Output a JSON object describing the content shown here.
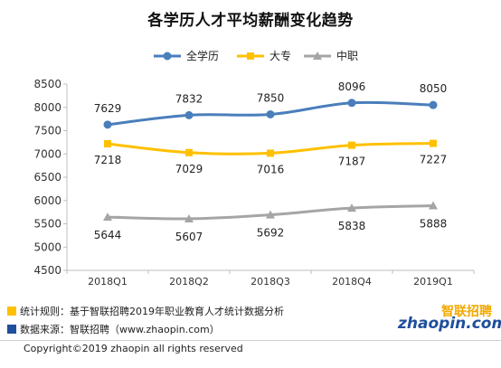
{
  "title": "各学历人才平均薪酬变化趋势",
  "chart_data": {
    "type": "line",
    "categories": [
      "2018Q1",
      "2018Q2",
      "2018Q3",
      "2018Q4",
      "2019Q1"
    ],
    "series": [
      {
        "name": "全学历",
        "values": [
          7629,
          7832,
          7850,
          8096,
          8050
        ],
        "color": "#4a7ebb",
        "marker": "circle"
      },
      {
        "name": "大专",
        "values": [
          7218,
          7029,
          7016,
          7187,
          7227
        ],
        "color": "#ffc000",
        "marker": "square"
      },
      {
        "name": "中职",
        "values": [
          5644,
          5607,
          5692,
          5838,
          5888
        ],
        "color": "#a5a5a5",
        "marker": "triangle"
      }
    ],
    "yticks": [
      "4500",
      "5000",
      "5500",
      "6000",
      "6500",
      "7000",
      "7500",
      "8000",
      "8500"
    ],
    "ylim": [
      4500,
      8500
    ],
    "legend_position": "top",
    "grid": false
  },
  "footer": {
    "rule_text": "统计规则：基于智联招聘2019年职业教育人才统计数据分析",
    "rule_color": "#ffc000",
    "source_text": "数据来源：智联招聘（www.zhaopin.com）",
    "source_color": "#1f4e9c",
    "copyright": "Copyright©2019 zhaopin all rights reserved"
  },
  "logo": {
    "en": "zhaopin.com",
    "zh": "智联招聘"
  }
}
